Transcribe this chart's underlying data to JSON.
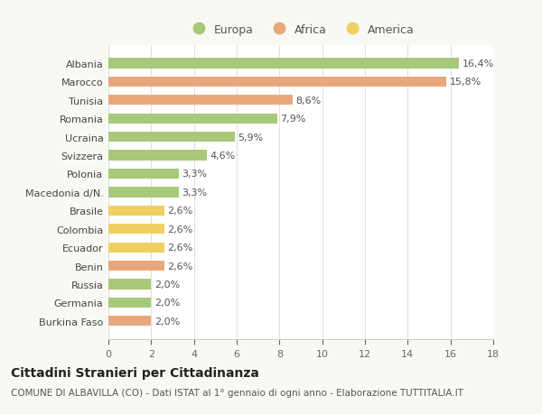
{
  "countries": [
    "Albania",
    "Marocco",
    "Tunisia",
    "Romania",
    "Ucraina",
    "Svizzera",
    "Polonia",
    "Macedonia d/N.",
    "Brasile",
    "Colombia",
    "Ecuador",
    "Benin",
    "Russia",
    "Germania",
    "Burkina Faso"
  ],
  "values": [
    16.4,
    15.8,
    8.6,
    7.9,
    5.9,
    4.6,
    3.3,
    3.3,
    2.6,
    2.6,
    2.6,
    2.6,
    2.0,
    2.0,
    2.0
  ],
  "labels": [
    "16,4%",
    "15,8%",
    "8,6%",
    "7,9%",
    "5,9%",
    "4,6%",
    "3,3%",
    "3,3%",
    "2,6%",
    "2,6%",
    "2,6%",
    "2,6%",
    "2,0%",
    "2,0%",
    "2,0%"
  ],
  "continents": [
    "Europa",
    "Africa",
    "Africa",
    "Europa",
    "Europa",
    "Europa",
    "Europa",
    "Europa",
    "America",
    "America",
    "America",
    "Africa",
    "Europa",
    "Europa",
    "Africa"
  ],
  "colors": {
    "Europa": "#a8c87a",
    "Africa": "#e8a87c",
    "America": "#f0d060"
  },
  "title": "Cittadini Stranieri per Cittadinanza",
  "subtitle": "COMUNE DI ALBAVILLA (CO) - Dati ISTAT al 1° gennaio di ogni anno - Elaborazione TUTTITALIA.IT",
  "xlim": [
    0,
    18
  ],
  "xticks": [
    0,
    2,
    4,
    6,
    8,
    10,
    12,
    14,
    16,
    18
  ],
  "bg_color": "#f9f9f4",
  "plot_bg_color": "#ffffff",
  "grid_color": "#e0e0e0",
  "bar_height": 0.55,
  "label_fontsize": 8,
  "title_fontsize": 10,
  "subtitle_fontsize": 7.5,
  "tick_fontsize": 8,
  "legend_fontsize": 9
}
